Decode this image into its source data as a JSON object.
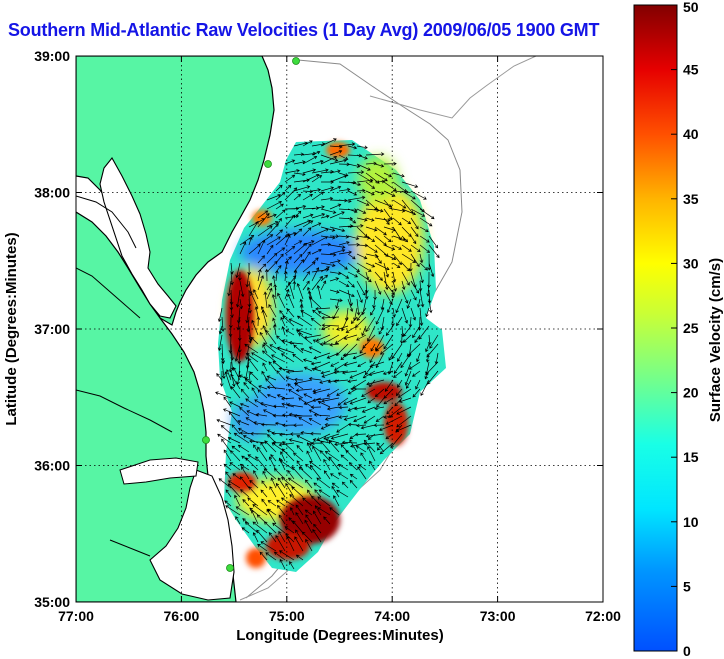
{
  "title": "Southern Mid-Atlantic Raw Velocities (1 Day Avg) 2009/06/05 1900 GMT",
  "map": {
    "xlabel": "Longitude (Degrees:Minutes)",
    "ylabel": "Latitude (Degrees:Minutes)",
    "lon_range": [
      -77,
      -72
    ],
    "lat_range": [
      35,
      39
    ],
    "x_ticks": [
      "77:00",
      "76:00",
      "75:00",
      "74:00",
      "73:00",
      "72:00"
    ],
    "y_ticks": [
      "39:00",
      "38:00",
      "37:00",
      "36:00",
      "35:00"
    ],
    "grid": "dotted",
    "land_color": "#57f5a4",
    "coast_color": "#000000",
    "station_color": "#3ddc3d"
  },
  "colorbar": {
    "label": "Surface Velocity (cm/s)",
    "min": 0,
    "max": 50,
    "ticks": [
      "0",
      "5",
      "10",
      "15",
      "20",
      "25",
      "30",
      "35",
      "40",
      "45",
      "50"
    ],
    "colormap": "jet"
  }
}
